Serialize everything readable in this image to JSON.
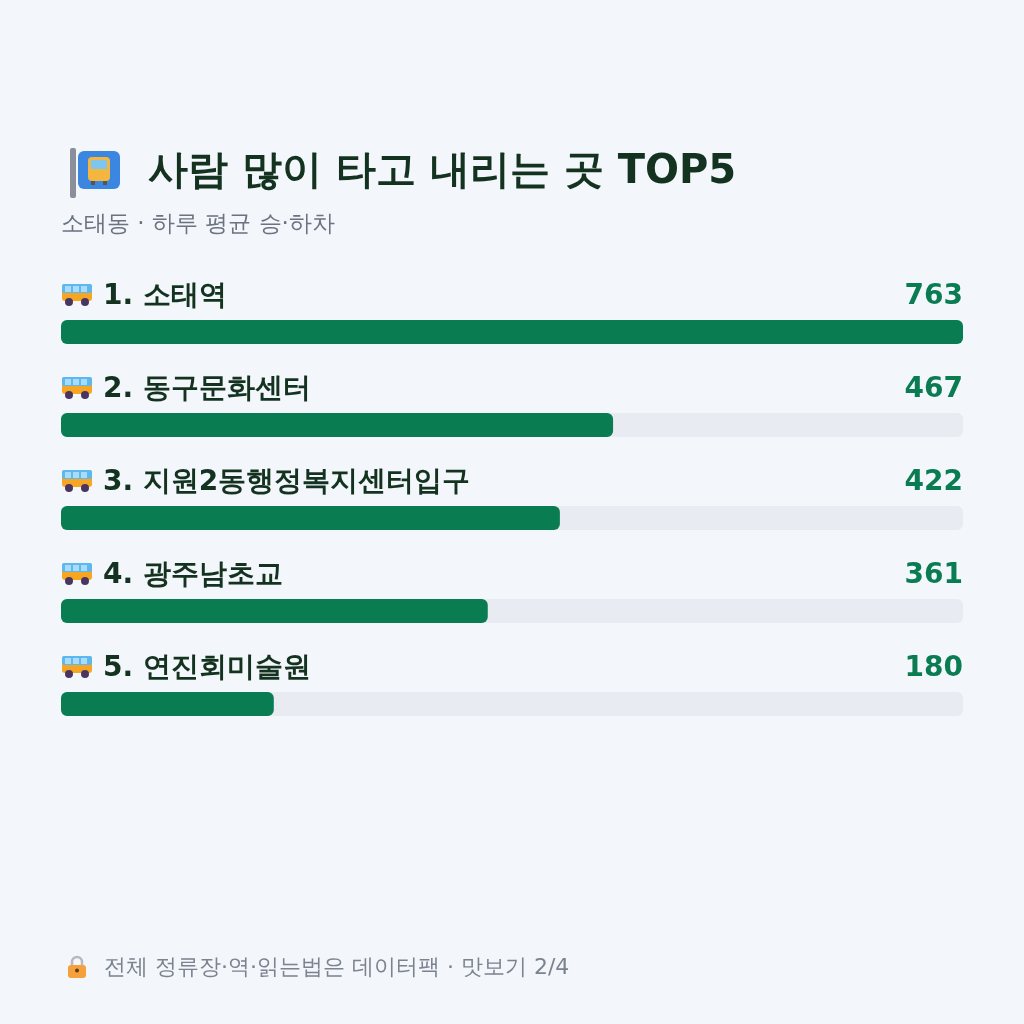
{
  "chart_data": {
    "type": "bar",
    "orientation": "horizontal",
    "title": "사람 많이 타고 내리는 곳 TOP5",
    "subtitle": "소태동 · 하루 평균 승·하차",
    "categories": [
      "1. 소태역",
      "2. 동구문화센터",
      "3. 지원2동행정복지센터입구",
      "4. 광주남초교",
      "5. 연진회미술원"
    ],
    "values": [
      763,
      467,
      422,
      361,
      180
    ],
    "color": "#0a7c52",
    "data_labels": true,
    "annotations": [
      "전체 정류장·역·읽는법은 데이터팩 · 맛보기 2/4"
    ]
  }
}
